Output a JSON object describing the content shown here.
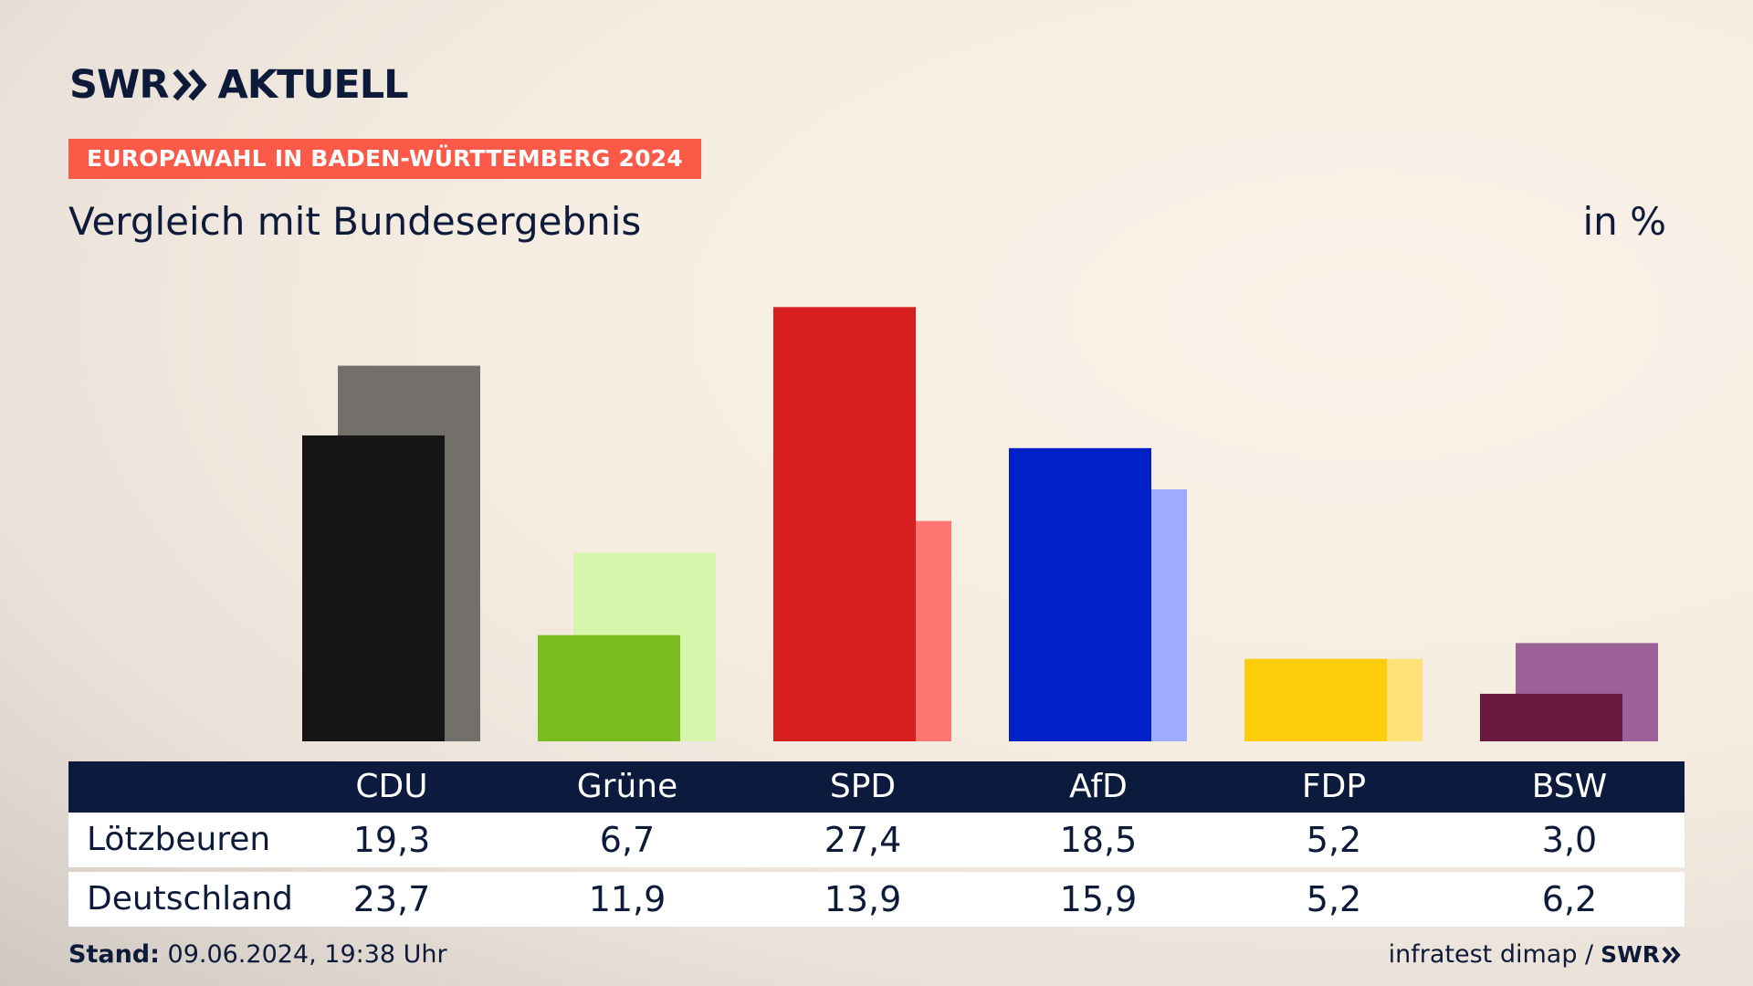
{
  "brand": {
    "logo_text": "SWR",
    "logo_product": "AKTUELL",
    "colors": {
      "navy": "#0c1b3d",
      "accent": "#fb5a48"
    }
  },
  "header": {
    "kicker": "EUROPAWAHL IN BADEN-WÜRTTEMBERG 2024",
    "subtitle": "Vergleich mit Bundesergebnis",
    "unit": "in %"
  },
  "chart_data": {
    "type": "bar",
    "title": "",
    "categories": [
      "CDU",
      "Grüne",
      "SPD",
      "AfD",
      "FDP",
      "BSW"
    ],
    "ylim": [
      0,
      28
    ],
    "grid": false,
    "series": [
      {
        "name": "Lötzbeuren",
        "values": [
          19.3,
          6.7,
          27.4,
          18.5,
          5.2,
          3.0
        ],
        "colors": [
          "#151515",
          "#79be1c",
          "#d71f1f",
          "#0220c8",
          "#fdcd0b",
          "#6b193f"
        ]
      },
      {
        "name": "Deutschland",
        "values": [
          23.7,
          11.9,
          13.9,
          15.9,
          5.2,
          6.2
        ],
        "colors": [
          "#73706c",
          "#d6f6ab",
          "#ff7670",
          "#9eacff",
          "#ffe27a",
          "#9b6198"
        ]
      }
    ]
  },
  "table": {
    "headers": [
      "CDU",
      "Grüne",
      "SPD",
      "AfD",
      "FDP",
      "BSW"
    ],
    "rows": [
      {
        "label": "Lötzbeuren",
        "values": [
          "19,3",
          "6,7",
          "27,4",
          "18,5",
          "5,2",
          "3,0"
        ]
      },
      {
        "label": "Deutschland",
        "values": [
          "23,7",
          "11,9",
          "13,9",
          "15,9",
          "5,2",
          "6,2"
        ]
      }
    ]
  },
  "footer": {
    "stand_label": "Stand:",
    "stand_value": "09.06.2024, 19:38 Uhr",
    "source": "infratest dimap /",
    "source_logo": "SWR"
  }
}
